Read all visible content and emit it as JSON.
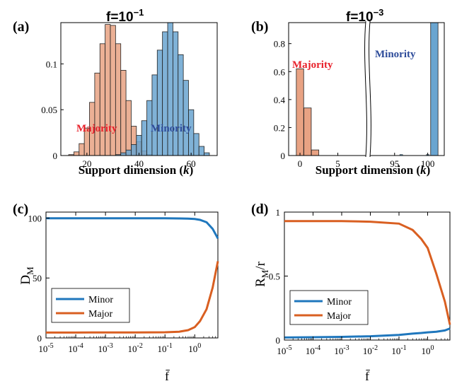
{
  "colors": {
    "majority_fill": "#E8A283",
    "minority_fill": "#6AA5D0",
    "minor_line": "#1F77BD",
    "major_line": "#D95F21",
    "majority_text": "#E8202A",
    "minority_text": "#2E4C9A"
  },
  "chart_data": [
    {
      "panel": "(a)",
      "type": "bar",
      "title_base": "f=10",
      "title_exp": "−1",
      "xlabel": "Support dimension (k)",
      "xlim": [
        10,
        70
      ],
      "ylim": [
        0,
        0.145
      ],
      "xticks": [
        "20",
        "40",
        "60"
      ],
      "yticks": [
        "0",
        "0.05",
        "0.1"
      ],
      "annotations": [
        "Majority",
        "Minority"
      ],
      "series": [
        {
          "name": "Majority",
          "bin_width": 2,
          "x": [
            14,
            16,
            18,
            20,
            22,
            24,
            26,
            28,
            30,
            32,
            34,
            36,
            38,
            40,
            42,
            44
          ],
          "values": [
            0.001,
            0.004,
            0.013,
            0.03,
            0.058,
            0.09,
            0.122,
            0.143,
            0.142,
            0.122,
            0.093,
            0.06,
            0.032,
            0.015,
            0.005,
            0.001
          ]
        },
        {
          "name": "Minority",
          "bin_width": 2,
          "x": [
            32,
            34,
            36,
            38,
            40,
            42,
            44,
            46,
            48,
            50,
            52,
            54,
            56,
            58,
            60,
            62,
            64,
            66
          ],
          "values": [
            0.001,
            0.003,
            0.006,
            0.012,
            0.022,
            0.038,
            0.06,
            0.088,
            0.115,
            0.135,
            0.145,
            0.135,
            0.11,
            0.082,
            0.05,
            0.024,
            0.01,
            0.003
          ]
        }
      ]
    },
    {
      "panel": "(b)",
      "type": "bar",
      "title_base": "f=10",
      "title_exp": "−3",
      "xlabel": "Support dimension (k)",
      "ylim": [
        0,
        0.95
      ],
      "xticks": [
        "0",
        "5",
        "95",
        "100"
      ],
      "yticks": [
        "0",
        "0.2",
        "0.4",
        "0.6",
        "0.8"
      ],
      "axis_break": true,
      "annotations": [
        "Majority",
        "Minority"
      ],
      "series": [
        {
          "name": "Majority",
          "x": [
            0,
            1,
            2
          ],
          "values": [
            0.62,
            0.34,
            0.04
          ]
        },
        {
          "name": "Minority",
          "x": [
            101
          ],
          "values": [
            0.98
          ]
        }
      ]
    },
    {
      "panel": "(c)",
      "type": "line",
      "x_scale": "log",
      "xlim": [
        1e-05,
        6
      ],
      "ylim": [
        0,
        105
      ],
      "ylabel_base": "D",
      "ylabel_sub": "M",
      "xlabel": "f̄",
      "yticks": [
        "0",
        "50",
        "100"
      ],
      "xticks": [
        {
          "base": "10",
          "exp": "-5"
        },
        {
          "base": "10",
          "exp": "-4"
        },
        {
          "base": "10",
          "exp": "-3"
        },
        {
          "base": "10",
          "exp": "-2"
        },
        {
          "base": "10",
          "exp": "-1"
        },
        {
          "base": "10",
          "exp": "0"
        }
      ],
      "legend": {
        "position": "bottom-left",
        "entries": [
          "Minor",
          "Major"
        ]
      },
      "series": [
        {
          "name": "Minor",
          "x": [
            1e-05,
            0.0001,
            0.001,
            0.01,
            0.1,
            0.3,
            0.6,
            1,
            1.5,
            2.5,
            4,
            6
          ],
          "values": [
            99.8,
            99.8,
            99.8,
            99.8,
            99.8,
            99.7,
            99.5,
            99.2,
            98.5,
            96.5,
            91,
            83
          ]
        },
        {
          "name": "Major",
          "x": [
            1e-05,
            0.0001,
            0.001,
            0.01,
            0.1,
            0.3,
            0.6,
            1,
            1.5,
            2.5,
            4,
            6
          ],
          "values": [
            4.5,
            4.5,
            4.6,
            4.6,
            4.7,
            5.2,
            6.5,
            9,
            14,
            24,
            42,
            64
          ]
        }
      ]
    },
    {
      "panel": "(d)",
      "type": "line",
      "x_scale": "log",
      "xlim": [
        1e-05,
        6
      ],
      "ylim": [
        0,
        1.0
      ],
      "ylabel_base": "R",
      "ylabel_sub": "M",
      "ylabel_rest": "/r",
      "xlabel": "f̄",
      "yticks": [
        "0",
        "0.5",
        "1"
      ],
      "xticks": [
        {
          "base": "10",
          "exp": "-5"
        },
        {
          "base": "10",
          "exp": "-4"
        },
        {
          "base": "10",
          "exp": "-3"
        },
        {
          "base": "10",
          "exp": "-2"
        },
        {
          "base": "10",
          "exp": "-1"
        },
        {
          "base": "10",
          "exp": "0"
        }
      ],
      "legend": {
        "position": "bottom-left",
        "entries": [
          "Minor",
          "Major"
        ]
      },
      "series": [
        {
          "name": "Minor",
          "x": [
            1e-05,
            0.0001,
            0.001,
            0.01,
            0.1,
            0.3,
            0.6,
            1,
            2,
            4,
            6
          ],
          "values": [
            0.02,
            0.022,
            0.025,
            0.03,
            0.04,
            0.05,
            0.055,
            0.06,
            0.065,
            0.075,
            0.09
          ]
        },
        {
          "name": "Major",
          "x": [
            1e-05,
            0.0001,
            0.001,
            0.01,
            0.1,
            0.3,
            0.6,
            1,
            2,
            4,
            6
          ],
          "values": [
            0.93,
            0.93,
            0.93,
            0.925,
            0.91,
            0.86,
            0.79,
            0.72,
            0.52,
            0.3,
            0.12
          ]
        }
      ]
    }
  ]
}
